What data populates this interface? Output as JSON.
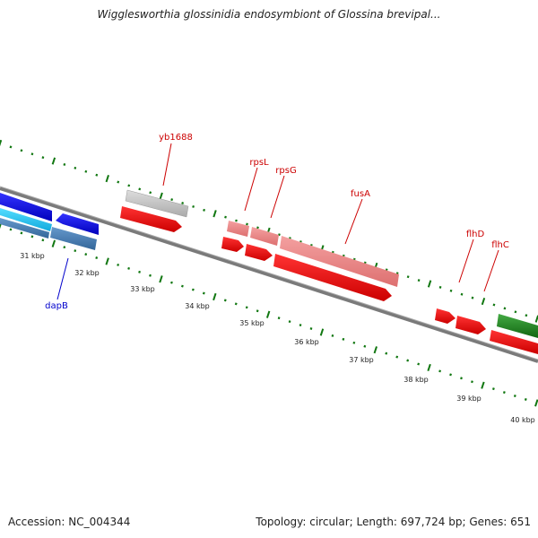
{
  "title": "Wigglesworthia glossinidia endosymbiont of Glossina brevipal...",
  "footer": {
    "accession": "Accession: NC_004344",
    "summary": "Topology: circular; Length: 697,724 bp; Genes: 651"
  },
  "scale_labels": [
    "31 kbp",
    "32 kbp",
    "33 kbp",
    "34 kbp",
    "35 kbp",
    "36 kbp",
    "37 kbp",
    "38 kbp",
    "39 kbp",
    "40 kbp"
  ],
  "gene_labels": [
    {
      "text": "yb1688",
      "color": "#cc0000"
    },
    {
      "text": "rpsL",
      "color": "#cc0000"
    },
    {
      "text": "rpsG",
      "color": "#cc0000"
    },
    {
      "text": "fusA",
      "color": "#cc0000"
    },
    {
      "text": "flhD",
      "color": "#cc0000"
    },
    {
      "text": "flhC",
      "color": "#cc0000"
    },
    {
      "text": "dapB",
      "color": "#0000cc"
    }
  ],
  "colors": {
    "backbone": "#777777",
    "tick_green": "#117711",
    "cds_red": "#ee0000",
    "cds_light_red": "#ee8888",
    "cds_gray": "#bbbbbb",
    "cds_blue": "#1111dd",
    "cds_cyan": "#22ccee",
    "cds_steel": "#4477bb",
    "cds_green": "#228822"
  }
}
